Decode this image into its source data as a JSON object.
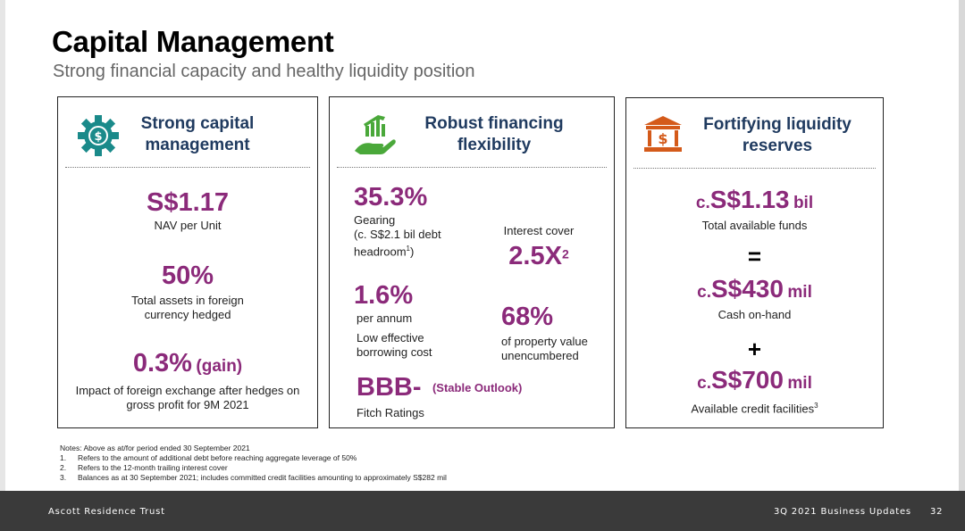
{
  "page": {
    "title": "Capital Management",
    "subtitle": "Strong financial capacity and healthy liquidity position"
  },
  "panel1": {
    "icon": "gear-dollar-icon",
    "heading_line1": "Strong capital",
    "heading_line2": "management",
    "nav_value": "S$1.17",
    "nav_label": "NAV per Unit",
    "hedged_value": "50%",
    "hedged_label_line1": "Total assets in foreign",
    "hedged_label_line2": "currency hedged",
    "fx_value": "0.3%",
    "fx_suffix": "(gain)",
    "fx_label_line1": "Impact of foreign exchange after hedges on",
    "fx_label_line2": "gross profit for 9M 2021"
  },
  "panel2": {
    "icon": "hand-growth-chart-icon",
    "heading_line1": "Robust financing",
    "heading_line2": "flexibility",
    "gearing_value": "35.3%",
    "gearing_label": "Gearing",
    "gearing_note_line1": "(c. S$2.1 bil debt",
    "gearing_note_line2": "headroom",
    "gearing_note_sup": "1",
    "gearing_note_close": ")",
    "interest_label": "Interest cover",
    "interest_value": "2.5X",
    "interest_sup": "2",
    "cost_value": "1.6%",
    "cost_unit": "per annum",
    "cost_label_line1": "Low effective",
    "cost_label_line2": "borrowing cost",
    "unencumbered_value": "68%",
    "unencumbered_label_line1": "of property value",
    "unencumbered_label_line2": "unencumbered",
    "rating_value": "BBB-",
    "rating_outlook": "(Stable Outlook)",
    "rating_label": "Fitch Ratings"
  },
  "panel3": {
    "icon": "bank-dollar-icon",
    "heading_line1": "Fortifying liquidity",
    "heading_line2": "reserves",
    "funds_prefix": "c.",
    "funds_value": "S$1.13",
    "funds_unit": "bil",
    "funds_label": "Total available funds",
    "equals": "=",
    "cash_prefix": "c.",
    "cash_value": "S$430",
    "cash_unit": "mil",
    "cash_label": "Cash on-hand",
    "plus": "+",
    "credit_prefix": "c.",
    "credit_value": "S$700",
    "credit_unit": "mil",
    "credit_label": "Available credit facilities",
    "credit_sup": "3"
  },
  "notes": {
    "header": "Notes: Above as at/for period ended 30 September 2021",
    "items": [
      {
        "num": "1.",
        "text": "Refers to the amount of additional debt before reaching aggregate leverage of 50%"
      },
      {
        "num": "2.",
        "text": "Refers to the 12-month trailing interest cover"
      },
      {
        "num": "3.",
        "text": "Balances as at 30 September 2021; includes committed credit facilities amounting to approximately S$282 mil"
      }
    ]
  },
  "footer": {
    "left": "Ascott Residence Trust",
    "right": "3Q 2021 Business Updates",
    "page_number": "32"
  },
  "colors": {
    "accent_purple": "#8b2a7a",
    "heading_navy": "#1f3a5f",
    "icon_teal": "#1a8a8a",
    "icon_green": "#4aa83a",
    "icon_orange": "#d45a1a",
    "footer_bg": "#3a3a3a"
  }
}
